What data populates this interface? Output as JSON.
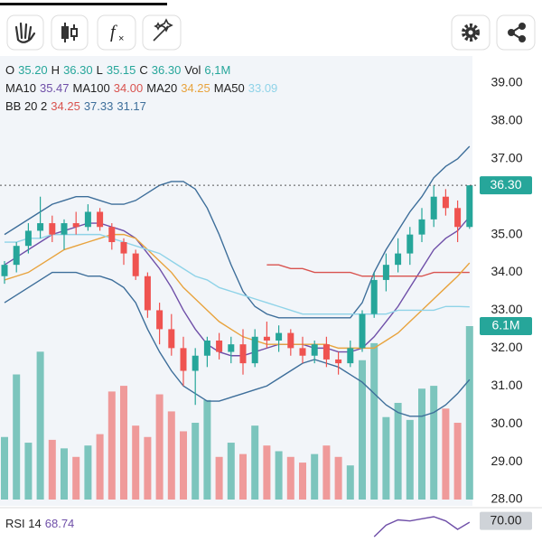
{
  "chart_data": {
    "type": "candlestick",
    "ohlc_legend": [
      {
        "label": "O",
        "value": "35.20"
      },
      {
        "label": "H",
        "value": "36.30"
      },
      {
        "label": "L",
        "value": "35.15"
      },
      {
        "label": "C",
        "value": "36.30"
      },
      {
        "label": "Vol",
        "value": "6,1M"
      }
    ],
    "legend_value_color": "#26a69a",
    "ma_legend": [
      {
        "name": "MA10",
        "value": "35.47",
        "color": "#6f4fa8",
        "values": [
          34.2,
          34.4,
          34.6,
          34.8,
          35.0,
          35.1,
          35.2,
          35.3,
          35.3,
          35.2,
          35.1,
          34.9,
          34.5,
          34.1,
          33.6,
          33.0,
          32.5,
          32.1,
          31.9,
          31.8,
          31.8,
          31.9,
          32.0,
          32.1,
          32.1,
          32.1,
          32.0,
          32.0,
          31.9,
          31.9,
          32.0,
          32.3,
          32.7,
          33.1,
          33.6,
          34.1,
          34.6,
          34.9,
          35.1,
          35.47
        ]
      },
      {
        "name": "MA100",
        "value": "34.00",
        "color": "#d9534f",
        "values": [
          null,
          null,
          null,
          null,
          null,
          null,
          null,
          null,
          null,
          null,
          null,
          null,
          null,
          null,
          null,
          null,
          null,
          null,
          null,
          null,
          null,
          null,
          34.2,
          34.2,
          34.1,
          34.1,
          34.0,
          34.0,
          34.0,
          34.0,
          33.9,
          33.9,
          33.9,
          33.9,
          33.9,
          33.9,
          34.0,
          34.0,
          34.0,
          34.0
        ]
      },
      {
        "name": "MA20",
        "value": "34.25",
        "color": "#e8a33d",
        "values": [
          33.8,
          33.9,
          34.0,
          34.2,
          34.4,
          34.6,
          34.7,
          34.8,
          34.9,
          35.0,
          35.0,
          34.9,
          34.6,
          34.3,
          34.0,
          33.6,
          33.3,
          33.0,
          32.7,
          32.5,
          32.3,
          32.2,
          32.1,
          32.1,
          32.1,
          32.1,
          32.1,
          32.1,
          32.0,
          32.0,
          32.0,
          32.0,
          32.2,
          32.4,
          32.7,
          33.0,
          33.3,
          33.6,
          33.9,
          34.25
        ]
      },
      {
        "name": "MA50",
        "value": "33.09",
        "color": "#8fd3e8",
        "values": [
          34.8,
          34.8,
          34.9,
          34.9,
          35.0,
          35.0,
          35.0,
          35.0,
          35.0,
          34.9,
          34.8,
          34.7,
          34.6,
          34.5,
          34.3,
          34.1,
          33.9,
          33.8,
          33.6,
          33.5,
          33.4,
          33.3,
          33.2,
          33.1,
          33.0,
          32.9,
          32.9,
          32.9,
          32.9,
          32.9,
          32.9,
          32.9,
          32.9,
          33.0,
          33.0,
          33.0,
          33.0,
          33.1,
          33.1,
          33.09
        ]
      }
    ],
    "bb_legend": {
      "name": "BB 20 2",
      "series": [
        {
          "value": "34.25",
          "color": "#d9534f"
        },
        {
          "value": "37.33",
          "color": "#3d6e9a",
          "values": [
            35.0,
            35.2,
            35.4,
            35.6,
            35.8,
            35.9,
            36.0,
            36.0,
            35.9,
            35.8,
            35.8,
            35.9,
            36.1,
            36.3,
            36.4,
            36.4,
            36.2,
            35.7,
            35.0,
            34.2,
            33.5,
            33.1,
            32.9,
            32.8,
            32.8,
            32.8,
            32.8,
            32.8,
            32.8,
            32.8,
            33.2,
            34.0,
            34.6,
            35.1,
            35.6,
            36.0,
            36.5,
            36.8,
            37.0,
            37.33
          ]
        },
        {
          "value": "31.17",
          "color": "#3d6e9a",
          "values": [
            33.2,
            33.4,
            33.6,
            33.8,
            34.0,
            34.0,
            34.0,
            33.9,
            33.9,
            33.8,
            33.6,
            33.2,
            32.5,
            31.9,
            31.4,
            31.0,
            30.8,
            30.6,
            30.6,
            30.7,
            30.8,
            30.9,
            31.0,
            31.2,
            31.4,
            31.6,
            31.7,
            31.6,
            31.5,
            31.3,
            31.1,
            30.8,
            30.5,
            30.3,
            30.2,
            30.2,
            30.3,
            30.5,
            30.8,
            31.17
          ]
        }
      ]
    },
    "open": [
      33.9,
      34.2,
      34.7,
      35.1,
      35.3,
      35.0,
      35.3,
      35.2,
      35.6,
      35.2,
      34.8,
      34.5,
      33.9,
      33.0,
      32.5,
      32.0,
      31.4,
      31.8,
      32.2,
      31.9,
      32.1,
      31.6,
      32.3,
      32.2,
      32.4,
      32.0,
      31.8,
      32.1,
      31.7,
      31.6,
      32.0,
      32.9,
      33.8,
      34.2,
      34.5,
      35.0,
      35.4,
      36.0,
      35.7,
      35.2
    ],
    "high": [
      34.3,
      34.8,
      35.3,
      36.0,
      35.5,
      35.4,
      35.6,
      35.8,
      35.7,
      35.3,
      34.9,
      34.6,
      34.0,
      33.2,
      32.9,
      32.3,
      32.0,
      32.3,
      32.4,
      32.3,
      32.5,
      32.5,
      32.7,
      32.6,
      32.5,
      32.3,
      32.2,
      32.3,
      31.9,
      32.2,
      33.0,
      34.0,
      34.5,
      34.9,
      35.2,
      35.7,
      36.3,
      36.2,
      35.9,
      36.3
    ],
    "low": [
      33.7,
      34.0,
      34.5,
      34.9,
      34.8,
      34.6,
      35.0,
      35.1,
      35.1,
      34.6,
      34.2,
      33.8,
      32.8,
      32.1,
      31.8,
      31.0,
      30.5,
      31.5,
      31.7,
      31.6,
      31.3,
      31.5,
      32.0,
      31.9,
      31.8,
      31.6,
      31.6,
      31.5,
      31.3,
      31.5,
      31.9,
      32.8,
      33.5,
      34.0,
      34.2,
      34.8,
      35.2,
      35.5,
      34.8,
      35.15
    ],
    "close": [
      34.2,
      34.7,
      35.1,
      35.3,
      35.0,
      35.3,
      35.2,
      35.6,
      35.2,
      34.8,
      34.5,
      33.9,
      33.0,
      32.5,
      32.0,
      31.4,
      31.8,
      32.2,
      31.9,
      32.1,
      31.6,
      32.3,
      32.2,
      32.4,
      32.0,
      31.8,
      32.1,
      31.7,
      31.6,
      32.0,
      32.9,
      33.8,
      34.2,
      34.5,
      35.0,
      35.4,
      36.0,
      35.7,
      35.2,
      36.3
    ],
    "up_color": "#26a69a",
    "down_color": "#ef5350",
    "ylim": [
      28,
      39
    ],
    "yticks": [
      {
        "value": 28,
        "label": "28.00"
      },
      {
        "value": 29,
        "label": "29.00"
      },
      {
        "value": 30,
        "label": "30.00"
      },
      {
        "value": 31,
        "label": "31.00"
      },
      {
        "value": 32,
        "label": "32.00"
      },
      {
        "value": 33,
        "label": "33.00"
      },
      {
        "value": 34,
        "label": "34.00"
      },
      {
        "value": 35,
        "label": "35.00"
      },
      {
        "value": 37,
        "label": "37.00"
      },
      {
        "value": 38,
        "label": "38.00"
      },
      {
        "value": 39,
        "label": "39.00"
      }
    ],
    "price_tag": {
      "value": 36.3,
      "label": "36.30"
    },
    "volume": {
      "values": [
        2.2,
        4.4,
        2.0,
        5.2,
        2.1,
        1.8,
        1.5,
        1.9,
        2.3,
        3.8,
        4.0,
        2.6,
        2.2,
        3.7,
        3.1,
        2.4,
        2.7,
        3.5,
        1.5,
        2.0,
        1.6,
        2.6,
        1.9,
        1.7,
        1.5,
        1.3,
        1.6,
        1.9,
        1.5,
        1.2,
        4.9,
        5.5,
        2.9,
        3.4,
        2.8,
        3.9,
        4.0,
        3.2,
        2.7,
        6.1
      ],
      "up_color": "#7cc5bd",
      "down_color": "#ef9a9a",
      "ylim": [
        0,
        6.1
      ],
      "tag": {
        "value": 6.1,
        "label": "6.1M"
      }
    },
    "rsi": {
      "name": "RSI 14",
      "value": "68.74",
      "color": "#6f4fa8",
      "ylim": [
        50,
        80
      ],
      "tick": {
        "value": 70,
        "label": "70.00"
      },
      "values": [
        null,
        null,
        null,
        null,
        null,
        null,
        null,
        null,
        null,
        null,
        null,
        null,
        null,
        null,
        null,
        null,
        null,
        null,
        null,
        null,
        null,
        null,
        null,
        null,
        null,
        null,
        null,
        null,
        null,
        null,
        null,
        55,
        66,
        71,
        70,
        72,
        74,
        70,
        62,
        68.74
      ]
    }
  }
}
